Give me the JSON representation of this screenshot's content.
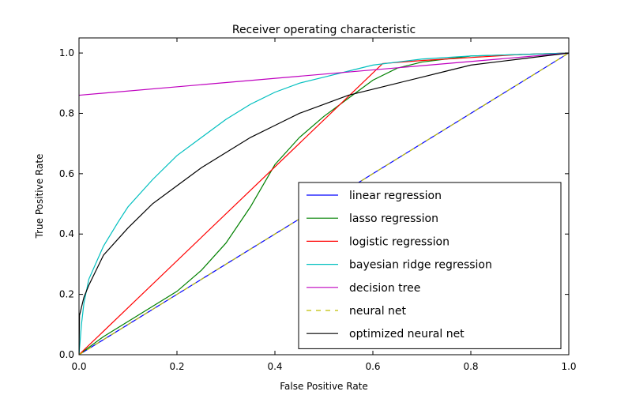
{
  "chart_data": {
    "type": "line",
    "title": "Receiver operating characteristic",
    "xlabel": "False Positive Rate",
    "ylabel": "True Positive Rate",
    "xlim": [
      0.0,
      1.0
    ],
    "ylim": [
      0.0,
      1.05
    ],
    "xticks": [
      0.0,
      0.2,
      0.4,
      0.6,
      0.8,
      1.0
    ],
    "yticks": [
      0.0,
      0.2,
      0.4,
      0.6,
      0.8,
      1.0
    ],
    "xtick_labels": [
      "0.0",
      "0.2",
      "0.4",
      "0.6",
      "0.8",
      "1.0"
    ],
    "ytick_labels": [
      "0.0",
      "0.2",
      "0.4",
      "0.6",
      "0.8",
      "1.0"
    ],
    "grid": false,
    "legend_position": "lower right",
    "series": [
      {
        "name": "linear regression",
        "color": "#0000ff",
        "dashed": false,
        "x": [
          0.0,
          1.0
        ],
        "y": [
          0.0,
          1.0
        ]
      },
      {
        "name": "lasso regression",
        "color": "#008000",
        "dashed": false,
        "x": [
          0.0,
          0.05,
          0.1,
          0.15,
          0.2,
          0.25,
          0.3,
          0.35,
          0.4,
          0.45,
          0.5,
          0.55,
          0.6,
          0.65,
          0.7,
          0.8,
          0.9,
          1.0
        ],
        "y": [
          0.0,
          0.06,
          0.11,
          0.16,
          0.21,
          0.28,
          0.37,
          0.49,
          0.63,
          0.72,
          0.79,
          0.85,
          0.91,
          0.95,
          0.97,
          0.99,
          0.995,
          1.0
        ]
      },
      {
        "name": "logistic regression",
        "color": "#ff0000",
        "dashed": false,
        "x": [
          0.0,
          0.62,
          0.7,
          0.8,
          0.9,
          1.0
        ],
        "y": [
          0.0,
          0.965,
          0.975,
          0.985,
          0.995,
          1.0
        ]
      },
      {
        "name": "bayesian ridge regression",
        "color": "#00bfbf",
        "dashed": false,
        "x": [
          0.0,
          0.005,
          0.01,
          0.02,
          0.05,
          0.08,
          0.1,
          0.15,
          0.2,
          0.25,
          0.3,
          0.35,
          0.4,
          0.45,
          0.5,
          0.55,
          0.6,
          0.65,
          0.7,
          0.8,
          0.9,
          1.0
        ],
        "y": [
          0.0,
          0.1,
          0.17,
          0.25,
          0.36,
          0.44,
          0.49,
          0.58,
          0.66,
          0.72,
          0.78,
          0.83,
          0.87,
          0.9,
          0.92,
          0.94,
          0.96,
          0.97,
          0.98,
          0.99,
          0.995,
          1.0
        ]
      },
      {
        "name": "decision tree",
        "color": "#bf00bf",
        "dashed": false,
        "x": [
          0.0,
          1.0
        ],
        "y": [
          0.86,
          1.0
        ]
      },
      {
        "name": "neural net",
        "color": "#bfbf00",
        "dashed": true,
        "x": [
          0.0,
          1.0
        ],
        "y": [
          0.0,
          1.0
        ]
      },
      {
        "name": "optimized neural net",
        "color": "#000000",
        "dashed": false,
        "x": [
          0.0,
          0.001,
          0.01,
          0.02,
          0.05,
          0.1,
          0.15,
          0.2,
          0.25,
          0.3,
          0.35,
          0.4,
          0.45,
          0.5,
          0.55,
          0.6,
          0.65,
          0.7,
          0.75,
          0.8,
          0.9,
          1.0
        ],
        "y": [
          0.0,
          0.13,
          0.19,
          0.23,
          0.33,
          0.42,
          0.5,
          0.56,
          0.62,
          0.67,
          0.72,
          0.76,
          0.8,
          0.83,
          0.86,
          0.88,
          0.9,
          0.92,
          0.94,
          0.96,
          0.98,
          1.0
        ]
      }
    ]
  }
}
